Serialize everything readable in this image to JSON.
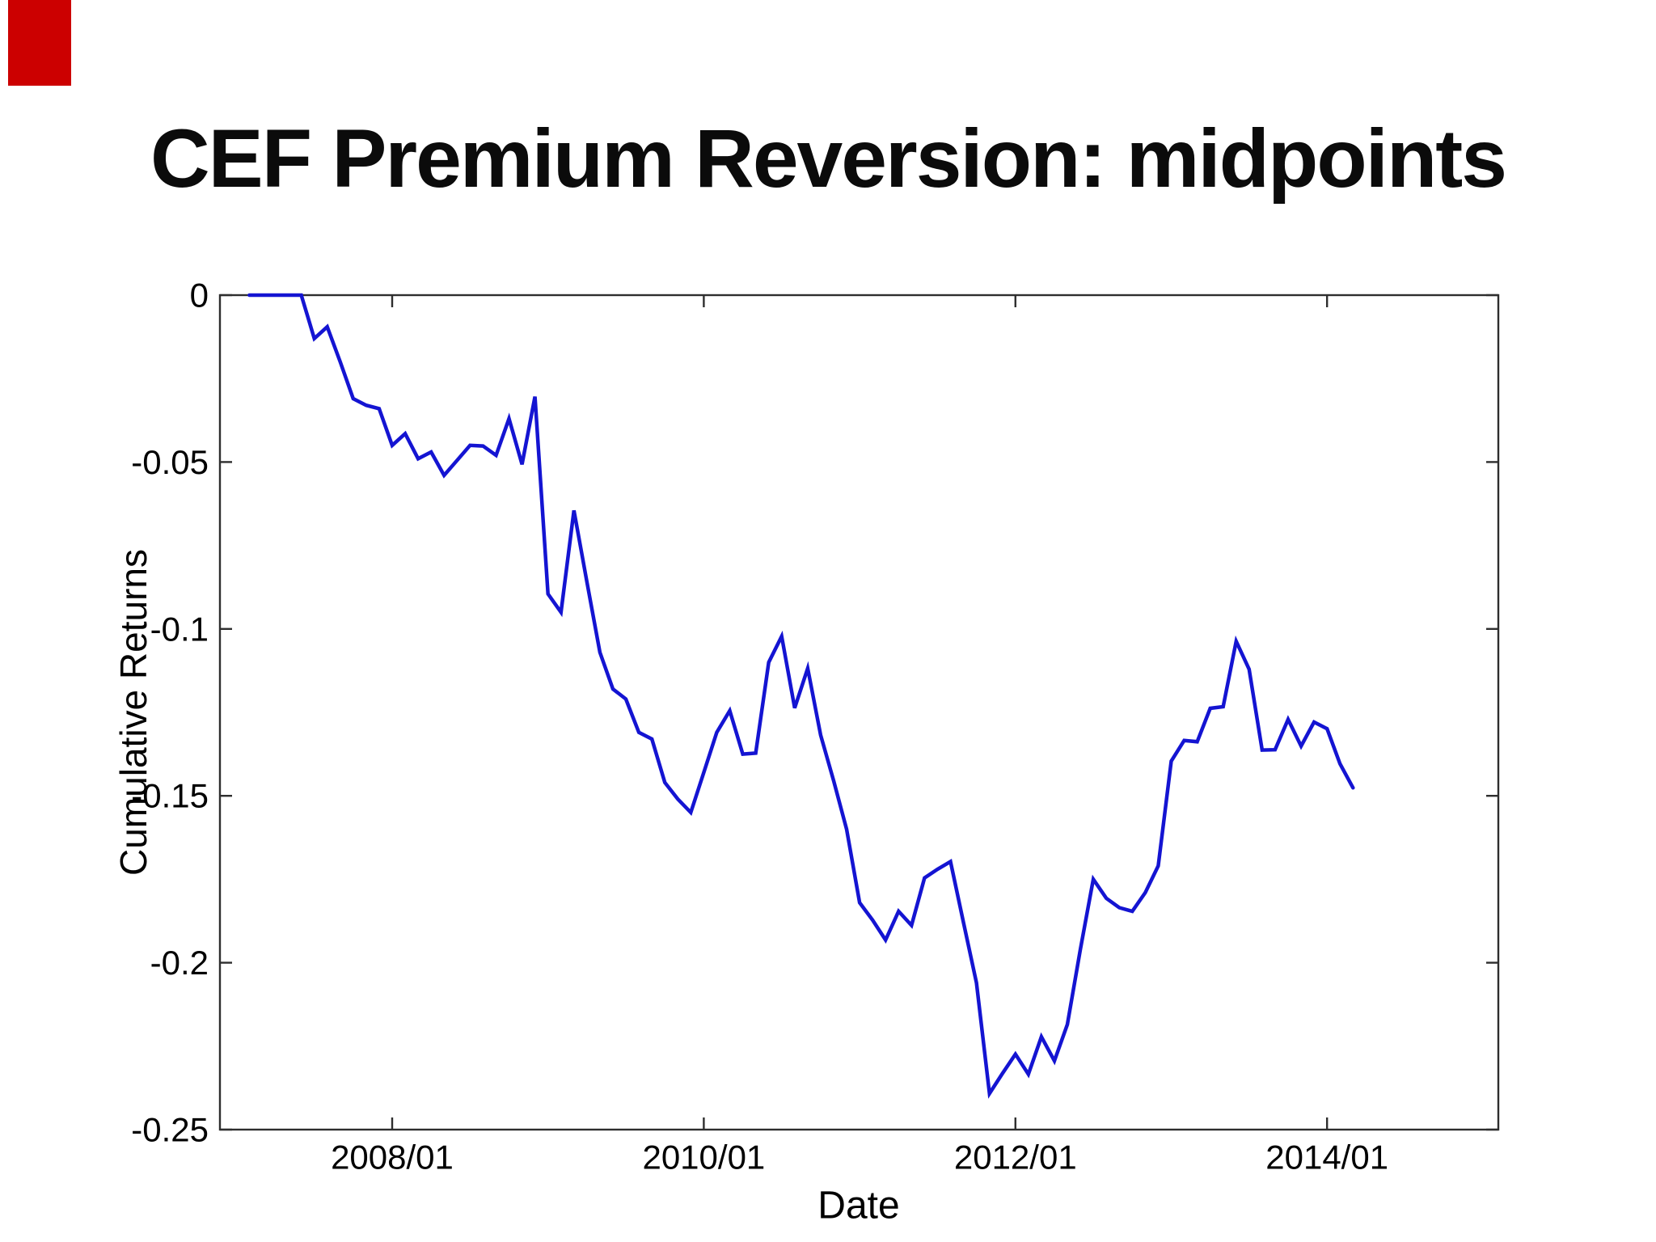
{
  "slide": {
    "corner_marker_color": "#cc0000",
    "background": "#ffffff"
  },
  "chart_data": {
    "type": "line",
    "title": "CEF Premium Reversion: midpoints",
    "xlabel": "Date",
    "ylabel": "Cumulative Returns",
    "x_tick_labels": [
      "2008/01",
      "2010/01",
      "2012/01",
      "2014/01"
    ],
    "y_tick_labels": [
      "0",
      "-0.05",
      "-0.1",
      "-0.15",
      "-0.2",
      "-0.25"
    ],
    "y_tick_values": [
      0,
      -0.05,
      -0.1,
      -0.15,
      -0.2,
      -0.25
    ],
    "ylim": [
      -0.25,
      0
    ],
    "grid": false,
    "legend": "none",
    "line_color": "#1414d2",
    "x_range": {
      "start": "2007/02",
      "end": "2014/03",
      "frequency": "monthly"
    },
    "series": [
      {
        "name": "midpoints",
        "color": "#1414d2",
        "values": [
          0,
          0,
          0,
          0,
          0,
          -0.013,
          -0.0095,
          -0.02,
          -0.031,
          -0.033,
          -0.034,
          -0.045,
          -0.0415,
          -0.049,
          -0.047,
          -0.054,
          -0.0495,
          -0.045,
          -0.0452,
          -0.048,
          -0.037,
          -0.0507,
          -0.0304,
          -0.0895,
          -0.095,
          -0.0645,
          -0.086,
          -0.107,
          -0.118,
          -0.121,
          -0.131,
          -0.133,
          -0.146,
          -0.151,
          -0.155,
          -0.143,
          -0.131,
          -0.1245,
          -0.1375,
          -0.1372,
          -0.11,
          -0.1022,
          -0.1237,
          -0.1118,
          -0.1318,
          -0.1455,
          -0.16,
          -0.182,
          -0.1872,
          -0.1932,
          -0.1846,
          -0.1888,
          -0.1746,
          -0.172,
          -0.1697,
          -0.188,
          -0.206,
          -0.2392,
          -0.2332,
          -0.2274,
          -0.2334,
          -0.2222,
          -0.2294,
          -0.2185,
          -0.196,
          -0.175,
          -0.1807,
          -0.1835,
          -0.1846,
          -0.179,
          -0.171,
          -0.1396,
          -0.1334,
          -0.1338,
          -0.1238,
          -0.1233,
          -0.1037,
          -0.1121,
          -0.1363,
          -0.1362,
          -0.1271,
          -0.1351,
          -0.1279,
          -0.1299,
          -0.1404,
          -0.1476
        ]
      }
    ]
  }
}
